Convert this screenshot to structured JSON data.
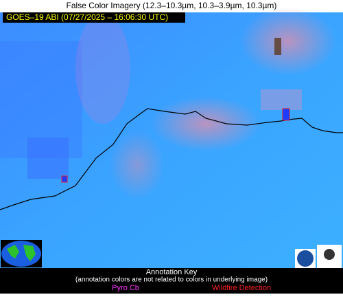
{
  "header": {
    "title": "False Color Imagery (12.3–10.3µm, 10.3–3.9µm, 10.3µm)"
  },
  "image": {
    "timestamp": "GOES–19 ABI (07/27/2025 – 16:06:30 UTC)"
  },
  "key": {
    "title": "Annotation Key",
    "note": "(annotation colors are not related to colors in underlying image)",
    "items": [
      "Pyro Cb",
      "Wildfire Detection"
    ]
  }
}
